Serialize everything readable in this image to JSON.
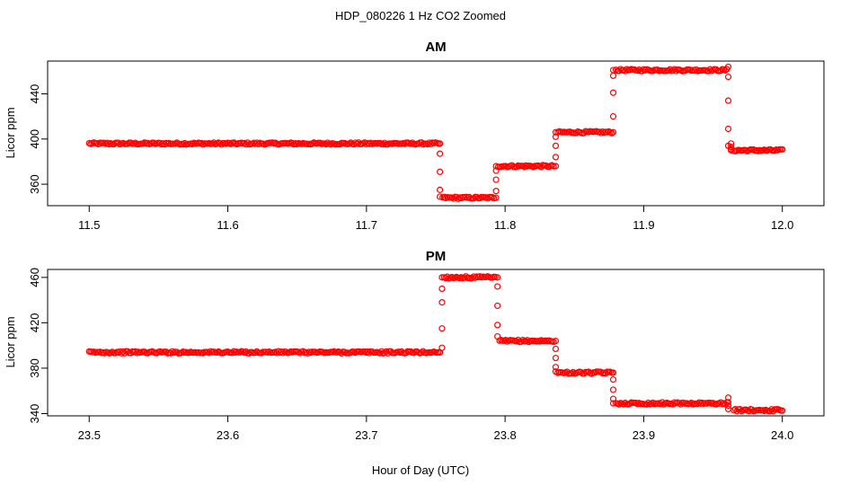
{
  "figure": {
    "title": "HDP_080226  1 Hz CO2 Zoomed",
    "xlabel": "Hour of Day (UTC)"
  },
  "colors": {
    "points": "#ff0000",
    "axes": "#000000",
    "background": "#ffffff"
  },
  "chart_data": [
    {
      "type": "scatter",
      "title": "AM",
      "xlabel": "",
      "ylabel": "Licor ppm",
      "xlim": [
        11.47,
        12.03
      ],
      "ylim": [
        341,
        469
      ],
      "xticks": [
        11.5,
        11.6,
        11.7,
        11.8,
        11.9,
        12.0
      ],
      "xtick_labels": [
        "11.5",
        "11.6",
        "11.7",
        "11.8",
        "11.9",
        "12.0"
      ],
      "yticks": [
        360,
        400,
        440
      ],
      "ytick_labels": [
        "360",
        "400",
        "440"
      ],
      "grid": false,
      "legend": "none",
      "segments": [
        {
          "x0": 11.5,
          "x1": 11.752,
          "y": 396
        },
        {
          "x0": 11.755,
          "x1": 11.792,
          "y": 348
        },
        {
          "x0": 11.795,
          "x1": 11.835,
          "y": 376
        },
        {
          "x0": 11.838,
          "x1": 11.877,
          "y": 406
        },
        {
          "x0": 11.88,
          "x1": 11.96,
          "y": 461
        },
        {
          "x0": 11.965,
          "x1": 12.0,
          "y": 390
        }
      ],
      "transitions": [
        {
          "x": 11.753,
          "y": [
            396,
            387,
            371,
            355,
            349
          ]
        },
        {
          "x": 11.7935,
          "y": [
            348,
            354,
            364,
            372,
            376
          ]
        },
        {
          "x": 11.8365,
          "y": [
            376,
            384,
            394,
            402,
            406
          ]
        },
        {
          "x": 11.878,
          "y": [
            406,
            420,
            441,
            456,
            461
          ]
        },
        {
          "x": 11.961,
          "y": [
            464,
            455,
            434,
            409,
            394
          ]
        },
        {
          "x": 11.963,
          "y": [
            396,
            393,
            391,
            390
          ]
        }
      ]
    },
    {
      "type": "scatter",
      "title": "PM",
      "xlabel": "Hour of Day (UTC)",
      "ylabel": "Licor ppm",
      "xlim": [
        23.47,
        24.03
      ],
      "ylim": [
        338,
        467
      ],
      "xticks": [
        23.5,
        23.6,
        23.7,
        23.8,
        23.9,
        24.0
      ],
      "xtick_labels": [
        "23.5",
        "23.6",
        "23.7",
        "23.8",
        "23.9",
        "24.0"
      ],
      "yticks": [
        340,
        380,
        420,
        460
      ],
      "ytick_labels": [
        "340",
        "380",
        "420",
        "460"
      ],
      "grid": false,
      "legend": "none",
      "segments": [
        {
          "x0": 23.5,
          "x1": 23.753,
          "y": 394
        },
        {
          "x0": 23.756,
          "x1": 23.793,
          "y": 460
        },
        {
          "x0": 23.796,
          "x1": 23.835,
          "y": 404
        },
        {
          "x0": 23.838,
          "x1": 23.877,
          "y": 376
        },
        {
          "x0": 23.88,
          "x1": 23.96,
          "y": 349
        },
        {
          "x0": 23.965,
          "x1": 24.0,
          "y": 343
        }
      ],
      "transitions": [
        {
          "x": 23.7545,
          "y": [
            398,
            415,
            438,
            450,
            460
          ]
        },
        {
          "x": 23.7945,
          "y": [
            460,
            452,
            435,
            418,
            408
          ]
        },
        {
          "x": 23.8365,
          "y": [
            404,
            397,
            389,
            381,
            377
          ]
        },
        {
          "x": 23.878,
          "y": [
            376,
            370,
            361,
            353,
            349
          ]
        },
        {
          "x": 23.961,
          "y": [
            354,
            350,
            347,
            344
          ]
        }
      ]
    }
  ]
}
